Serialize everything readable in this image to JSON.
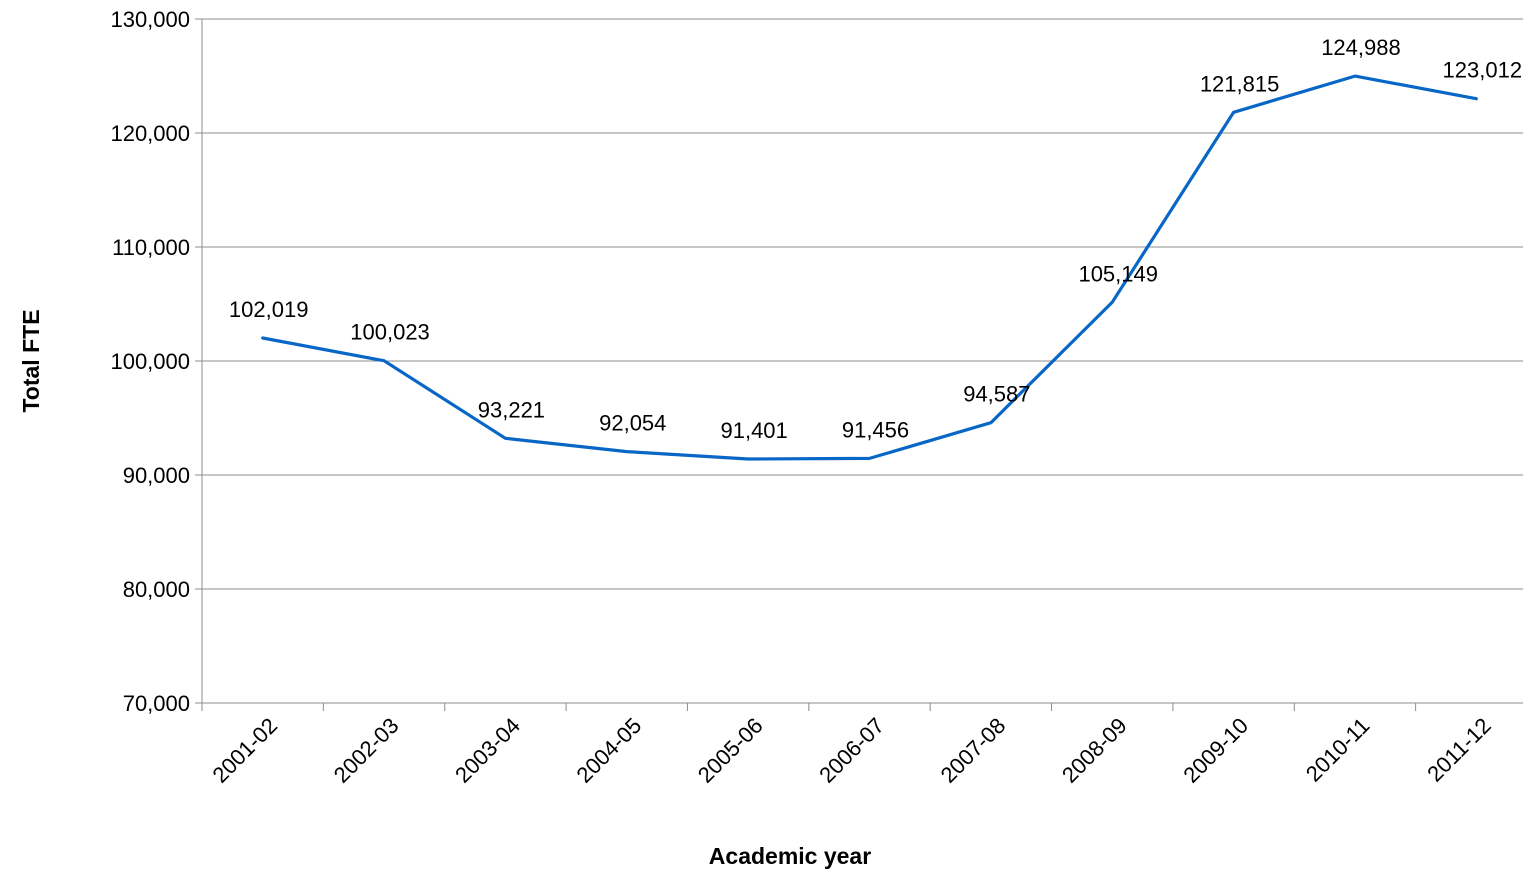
{
  "chart_data": {
    "type": "line",
    "title": "",
    "xlabel": "Academic year",
    "ylabel": "Total FTE",
    "categories": [
      "2001-02",
      "2002-03",
      "2003-04",
      "2004-05",
      "2005-06",
      "2006-07",
      "2007-08",
      "2008-09",
      "2009-10",
      "2010-11",
      "2011-12"
    ],
    "series": [
      {
        "values": [
          102019,
          100023,
          93221,
          92054,
          91401,
          91456,
          94587,
          105149,
          121815,
          124988,
          123012
        ],
        "data_labels": [
          "102,019",
          "100,023",
          "93,221",
          "92,054",
          "91,401",
          "91,456",
          "94,587",
          "105,149",
          "121,815",
          "124,988",
          "123,012"
        ],
        "color": "#0866C6"
      }
    ],
    "ylim": [
      70000,
      130000
    ],
    "yticks": [
      70000,
      80000,
      90000,
      100000,
      110000,
      120000,
      130000
    ],
    "ytick_labels": [
      "70,000",
      "80,000",
      "90,000",
      "100,000",
      "110,000",
      "120,000",
      "130,000"
    ],
    "grid": true,
    "legend": "none"
  }
}
